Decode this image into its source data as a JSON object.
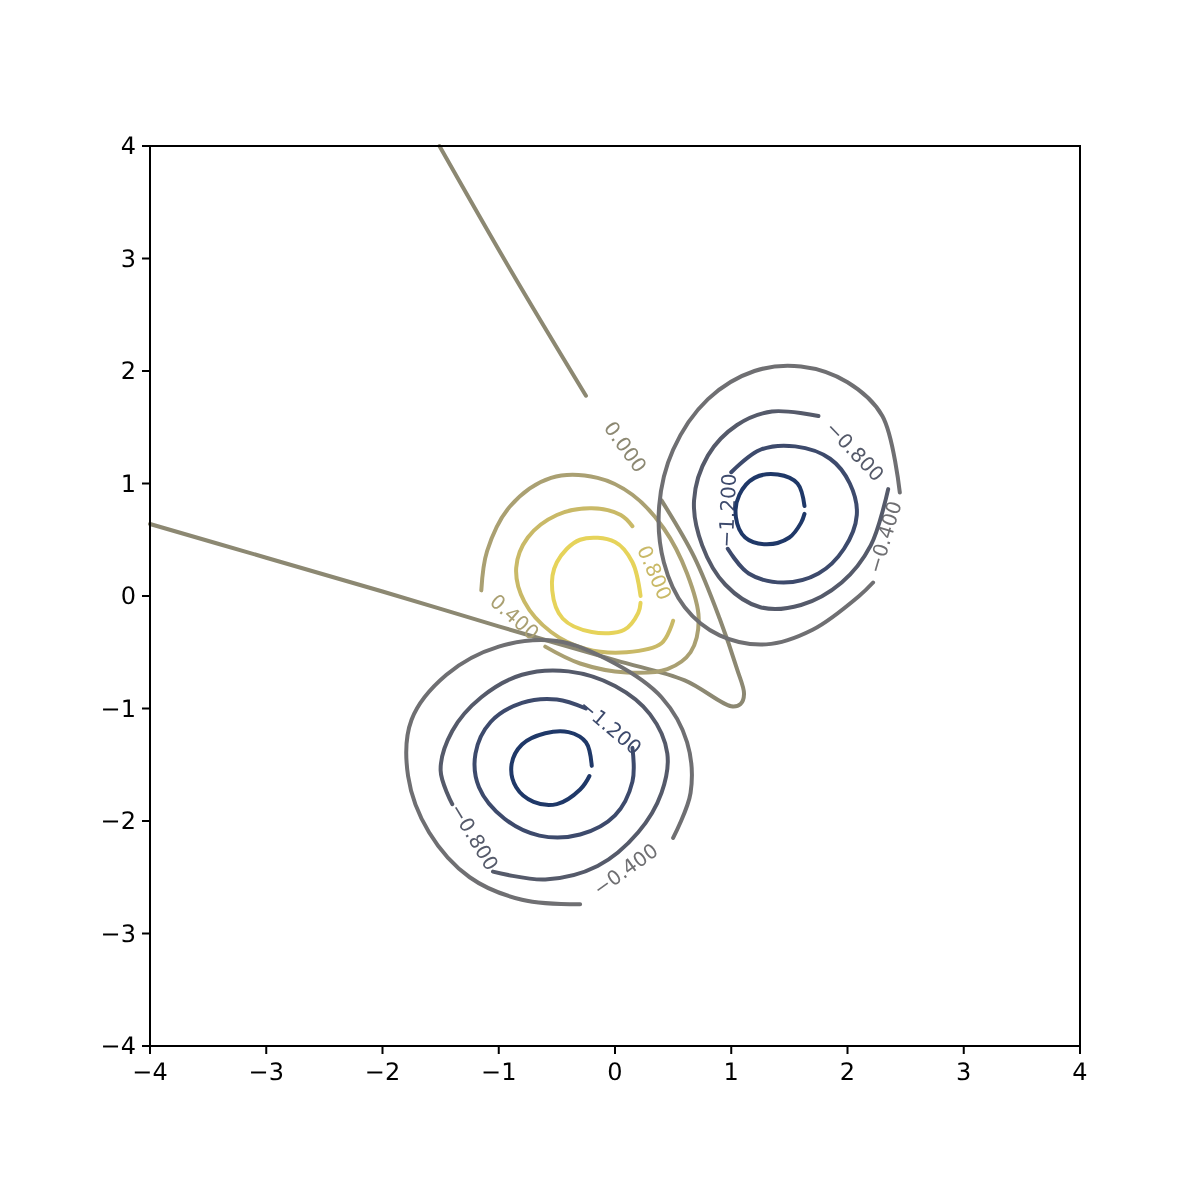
{
  "chart_data": {
    "type": "line",
    "xlim": [
      -4,
      4
    ],
    "ylim": [
      -4,
      4
    ],
    "xticks": [
      {
        "value": -4,
        "label": "−4"
      },
      {
        "value": -3,
        "label": "−3"
      },
      {
        "value": -2,
        "label": "−2"
      },
      {
        "value": -1,
        "label": "−1"
      },
      0,
      1,
      2,
      3,
      4
    ],
    "yticks": [
      {
        "value": -4,
        "label": "−4"
      },
      {
        "value": -3,
        "label": "−3"
      },
      {
        "value": -2,
        "label": "−2"
      },
      {
        "value": -1,
        "label": "−1"
      },
      0,
      1,
      2,
      3,
      4
    ],
    "grid": false,
    "marker": "none",
    "line_style": "solid",
    "series": [
      {
        "name": "0.000",
        "color": "#8c8872",
        "x": [
          -1.51,
          -0.9,
          -0.25,
          null,
          0.4,
          0.68,
          0.9,
          1.05,
          1.11,
          1.08,
          1.0,
          0.6,
          0.0,
          -1.0,
          -2.0,
          -3.0,
          -4.0
        ],
        "values": [
          4.0,
          2.9,
          1.78,
          null,
          0.85,
          0.35,
          -0.2,
          -0.65,
          -0.87,
          -0.96,
          -0.98,
          -0.75,
          -0.57,
          -0.27,
          0.04,
          0.34,
          0.64
        ]
      },
      {
        "name": "0.400",
        "color": "#aaa072",
        "x": [
          -1.15,
          -1.1,
          -0.9,
          -0.55,
          -0.15,
          0.15,
          0.42,
          0.62,
          0.72,
          0.65,
          0.45,
          0.1,
          -0.3,
          -0.6
        ],
        "values": [
          0.05,
          0.4,
          0.8,
          1.05,
          1.05,
          0.9,
          0.6,
          0.2,
          -0.2,
          -0.5,
          -0.65,
          -0.68,
          -0.6,
          -0.45
        ]
      },
      {
        "name": "0.800",
        "color": "#c9b967",
        "x": [
          0.5,
          0.4,
          0.1,
          -0.25,
          -0.55,
          -0.78,
          -0.85,
          -0.75,
          -0.5,
          -0.2,
          0.05,
          0.15
        ],
        "values": [
          -0.22,
          -0.42,
          -0.5,
          -0.47,
          -0.32,
          -0.05,
          0.25,
          0.52,
          0.72,
          0.78,
          0.72,
          0.62
        ]
      },
      {
        "color": "#e6d35a",
        "x": [
          0.22,
          0.15,
          0.0,
          -0.3,
          -0.5,
          -0.54,
          -0.45,
          -0.2,
          0.08,
          0.2,
          0.22
        ],
        "values": [
          0.0,
          0.3,
          0.48,
          0.5,
          0.3,
          0.05,
          -0.2,
          -0.32,
          -0.3,
          -0.15,
          -0.06
        ]
      },
      {
        "name": "−0.400",
        "color": "#6f6f72",
        "x": [
          2.22,
          2.1,
          1.7,
          1.3,
          0.9,
          0.6,
          0.42,
          0.38,
          0.5,
          0.8,
          1.2,
          1.6,
          2.0,
          2.3,
          2.45
        ],
        "values": [
          0.12,
          0.0,
          -0.3,
          -0.43,
          -0.35,
          -0.1,
          0.3,
          0.8,
          1.3,
          1.75,
          2.0,
          2.04,
          1.9,
          1.6,
          0.92
        ]
      },
      {
        "name": "−0.800",
        "color": "#555a6a",
        "x": [
          2.35,
          2.2,
          1.95,
          1.6,
          1.25,
          0.95,
          0.75,
          0.68,
          0.8,
          1.05,
          1.35,
          1.75
        ],
        "values": [
          0.95,
          0.45,
          0.12,
          -0.08,
          -0.1,
          0.1,
          0.45,
          0.85,
          1.25,
          1.52,
          1.64,
          1.6
        ]
      },
      {
        "name": "−1.200",
        "color": "#3d4a6c",
        "x": [
          1.0,
          1.25,
          1.55,
          1.85,
          2.02,
          2.08,
          1.97,
          1.75,
          1.45,
          1.15,
          0.97
        ],
        "values": [
          1.1,
          1.3,
          1.33,
          1.22,
          1.0,
          0.72,
          0.42,
          0.2,
          0.12,
          0.2,
          0.42
        ]
      },
      {
        "color": "#1f3868",
        "x": [
          1.63,
          1.57,
          1.4,
          1.2,
          1.07,
          1.04,
          1.12,
          1.3,
          1.5,
          1.6,
          1.63
        ],
        "values": [
          0.8,
          1.0,
          1.08,
          1.05,
          0.9,
          0.7,
          0.52,
          0.46,
          0.52,
          0.65,
          0.73
        ]
      },
      {
        "name": "−0.400",
        "color": "#6f6f72",
        "x": [
          0.5,
          0.65,
          0.62,
          0.4,
          0.0,
          -0.5,
          -1.0,
          -1.45,
          -1.75,
          -1.78,
          -1.6,
          -1.25,
          -0.8,
          -0.3
        ],
        "values": [
          -2.15,
          -1.75,
          -1.3,
          -0.9,
          -0.6,
          -0.4,
          -0.45,
          -0.7,
          -1.1,
          -1.6,
          -2.1,
          -2.5,
          -2.7,
          -2.74
        ]
      },
      {
        "name": "−0.800",
        "color": "#555a6a",
        "x": [
          -1.05,
          -0.6,
          -0.15,
          0.2,
          0.4,
          0.45,
          0.3,
          0.0,
          -0.4,
          -0.8,
          -1.15,
          -1.4,
          -1.5,
          -1.4
        ],
        "values": [
          -2.45,
          -2.52,
          -2.4,
          -2.1,
          -1.75,
          -1.4,
          -1.05,
          -0.8,
          -0.67,
          -0.7,
          -0.9,
          -1.2,
          -1.55,
          -1.85
        ]
      },
      {
        "name": "−1.200",
        "color": "#3d4a6c",
        "x": [
          0.15,
          0.15,
          0.0,
          -0.3,
          -0.65,
          -0.95,
          -1.17,
          -1.2,
          -1.07,
          -0.8,
          -0.5,
          -0.25
        ],
        "values": [
          -1.35,
          -1.65,
          -1.95,
          -2.12,
          -2.13,
          -1.98,
          -1.7,
          -1.4,
          -1.12,
          -0.95,
          -0.92,
          -1.0
        ]
      },
      {
        "color": "#1f3868",
        "x": [
          -0.2,
          -0.25,
          -0.4,
          -0.6,
          -0.8,
          -0.89,
          -0.85,
          -0.7,
          -0.5,
          -0.3,
          -0.22
        ],
        "values": [
          -1.51,
          -1.3,
          -1.21,
          -1.22,
          -1.32,
          -1.5,
          -1.7,
          -1.83,
          -1.85,
          -1.72,
          -1.6
        ]
      }
    ]
  }
}
